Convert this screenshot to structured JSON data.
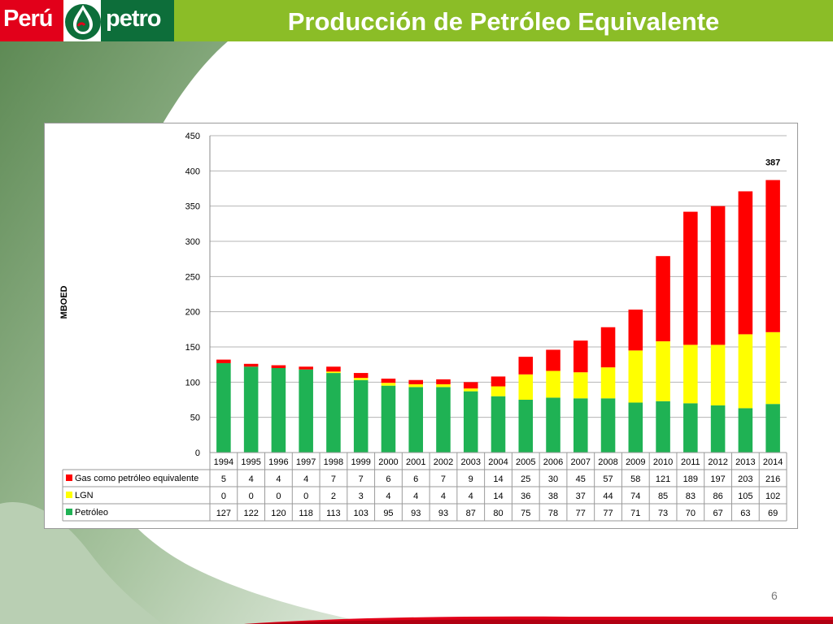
{
  "header": {
    "title": "Producción de Petróleo Equivalente",
    "logo_left": "Perú",
    "logo_right": "petro"
  },
  "page_number": "6",
  "colors": {
    "header_green": "#8bbd27",
    "gas": "#ff0000",
    "lgn": "#ffff00",
    "petroleo": "#1fb254"
  },
  "chart_data": {
    "type": "bar",
    "stacked": true,
    "ylabel": "MBOED",
    "ylim": [
      0,
      450
    ],
    "yticks": [
      0,
      50,
      100,
      150,
      200,
      250,
      300,
      350,
      400,
      450
    ],
    "grid": true,
    "categories": [
      "1994",
      "1995",
      "1996",
      "1997",
      "1998",
      "1999",
      "2000",
      "2001",
      "2002",
      "2003",
      "2004",
      "2005",
      "2006",
      "2007",
      "2008",
      "2009",
      "2010",
      "2011",
      "2012",
      "2013",
      "2014"
    ],
    "series": [
      {
        "name": "Petróleo",
        "color": "#1fb254",
        "values": [
          127,
          122,
          120,
          118,
          113,
          103,
          95,
          93,
          93,
          87,
          80,
          75,
          78,
          77,
          77,
          71,
          73,
          70,
          67,
          63,
          69
        ]
      },
      {
        "name": "LGN",
        "color": "#ffff00",
        "values": [
          0,
          0,
          0,
          0,
          2,
          3,
          4,
          4,
          4,
          4,
          14,
          36,
          38,
          37,
          44,
          74,
          85,
          83,
          86,
          105,
          102
        ]
      },
      {
        "name": "Gas como petróleo equivalente",
        "color": "#ff0000",
        "values": [
          5,
          4,
          4,
          4,
          7,
          7,
          6,
          6,
          7,
          9,
          14,
          25,
          30,
          45,
          57,
          58,
          121,
          189,
          197,
          203,
          216
        ]
      }
    ],
    "table_order": [
      "Gas como petróleo equivalente",
      "LGN",
      "Petróleo"
    ],
    "annotations": [
      {
        "category": "2014",
        "text": "387"
      }
    ]
  }
}
